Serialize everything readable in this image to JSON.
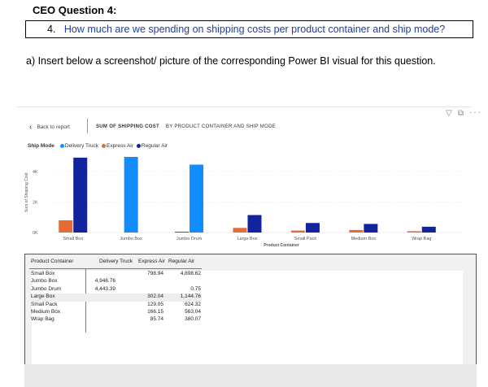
{
  "heading": "CEO Question 4:",
  "question": {
    "number": "4.",
    "text": "How much are we spending on shipping costs per product container and ship mode?"
  },
  "instruction": "a)  Insert below a screenshot/ picture of the corresponding Power BI visual for this question.",
  "toolbar": {
    "icons": [
      "filter-icon",
      "focus-mode-icon",
      "more-options-icon"
    ],
    "glyphs": "▽ ⧉ ···"
  },
  "back_label": "Back to report",
  "visual_title": {
    "bold": "SUM OF SHIPPING COST",
    "rest": "BY PRODUCT CONTAINER AND SHIP MODE"
  },
  "legend": {
    "title": "Ship Mode",
    "items": [
      {
        "name": "Delivery Truck",
        "color": "#118dff"
      },
      {
        "name": "Express Air",
        "color": "#e66c37"
      },
      {
        "name": "Regular Air",
        "color": "#12239e"
      }
    ]
  },
  "chart_data": {
    "type": "bar",
    "title": "SUM OF SHIPPING COST BY PRODUCT CONTAINER AND SHIP MODE",
    "xlabel": "Product Container",
    "ylabel": "Sum of Shipping Cost",
    "ylim": [
      0,
      5000
    ],
    "yticks": [
      0,
      2000,
      4000
    ],
    "ytick_labels": [
      "0K",
      "2K",
      "4K"
    ],
    "grid": true,
    "legend_position": "top-left",
    "categories": [
      "Small Box",
      "Jumbo Box",
      "Jumbo Drum",
      "Large Box",
      "Small Pack",
      "Medium Box",
      "Wrap Bag"
    ],
    "series": [
      {
        "name": "Express Air",
        "color": "#e66c37",
        "values": [
          798.94,
          null,
          null,
          302.04,
          129.05,
          166.15,
          85.74
        ]
      },
      {
        "name": "Regular Air",
        "color": "#12239e",
        "values": [
          4898.62,
          null,
          0.75,
          1144.76,
          624.32,
          563.04,
          380.07
        ]
      },
      {
        "name": "Delivery Truck",
        "color": "#118dff",
        "values": [
          null,
          4946.76,
          4443.39,
          null,
          null,
          null,
          null
        ]
      }
    ]
  },
  "table": {
    "headers": [
      "Product Container",
      "Delivery Truck",
      "Express Air",
      "Regular Air"
    ],
    "rows": [
      [
        "Small Box",
        "",
        "798.94",
        "4,898.62"
      ],
      [
        "Jumbo Box",
        "4,946.76",
        "",
        ""
      ],
      [
        "Jumbo Drum",
        "4,443.39",
        "",
        "0.75"
      ],
      [
        "Large Box",
        "",
        "302.04",
        "1,144.76"
      ],
      [
        "Small Pack",
        "",
        "129.05",
        "624.32"
      ],
      [
        "Medium Box",
        "",
        "166.15",
        "563.04"
      ],
      [
        "Wrap Bag",
        "",
        "85.74",
        "380.07"
      ]
    ]
  }
}
